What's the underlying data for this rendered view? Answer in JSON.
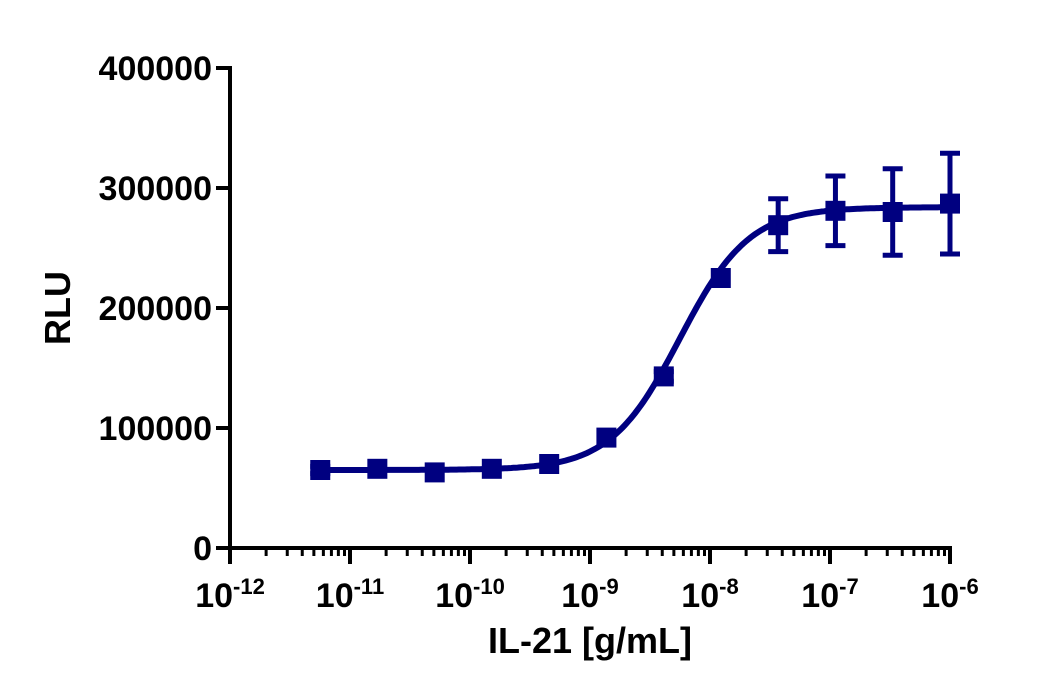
{
  "chart_data": {
    "type": "scatter",
    "title": "",
    "xlabel": "IL-21 [g/mL]",
    "ylabel": "RLU",
    "x_scale": "log",
    "xlim": [
      1e-12,
      1e-06
    ],
    "ylim": [
      0,
      400000
    ],
    "x_tick_labels": [
      {
        "base": "10",
        "exp": "-12"
      },
      {
        "base": "10",
        "exp": "-11"
      },
      {
        "base": "10",
        "exp": "-10"
      },
      {
        "base": "10",
        "exp": "-9"
      },
      {
        "base": "10",
        "exp": "-8"
      },
      {
        "base": "10",
        "exp": "-7"
      },
      {
        "base": "10",
        "exp": "-6"
      }
    ],
    "y_ticks": [
      0,
      100000,
      200000,
      300000,
      400000
    ],
    "y_tick_labels": [
      "0",
      "100000",
      "200000",
      "300000",
      "400000"
    ],
    "grid": false,
    "color": "#000080",
    "marker": "square",
    "points": [
      {
        "x": 5.65e-12,
        "y": 65000,
        "err": 3000
      },
      {
        "x": 1.69e-11,
        "y": 66000,
        "err": 0
      },
      {
        "x": 5.08e-11,
        "y": 63000,
        "err": 0
      },
      {
        "x": 1.52e-10,
        "y": 66000,
        "err": 0
      },
      {
        "x": 4.57e-10,
        "y": 70000,
        "err": 0
      },
      {
        "x": 1.37e-09,
        "y": 92000,
        "err": 0
      },
      {
        "x": 4.12e-09,
        "y": 143000,
        "err": 4000
      },
      {
        "x": 1.23e-08,
        "y": 225000,
        "err": 0
      },
      {
        "x": 3.7e-08,
        "y": 269000,
        "err": 22000
      },
      {
        "x": 1.11e-07,
        "y": 281000,
        "err": 29000
      },
      {
        "x": 3.33e-07,
        "y": 280000,
        "err": 36000
      },
      {
        "x": 1e-06,
        "y": 287000,
        "err": 42000
      }
    ],
    "fit": {
      "model": "4PL",
      "bottom": 65000,
      "top": 284000,
      "ec50": 5.6e-09,
      "hill": 1.5
    }
  }
}
